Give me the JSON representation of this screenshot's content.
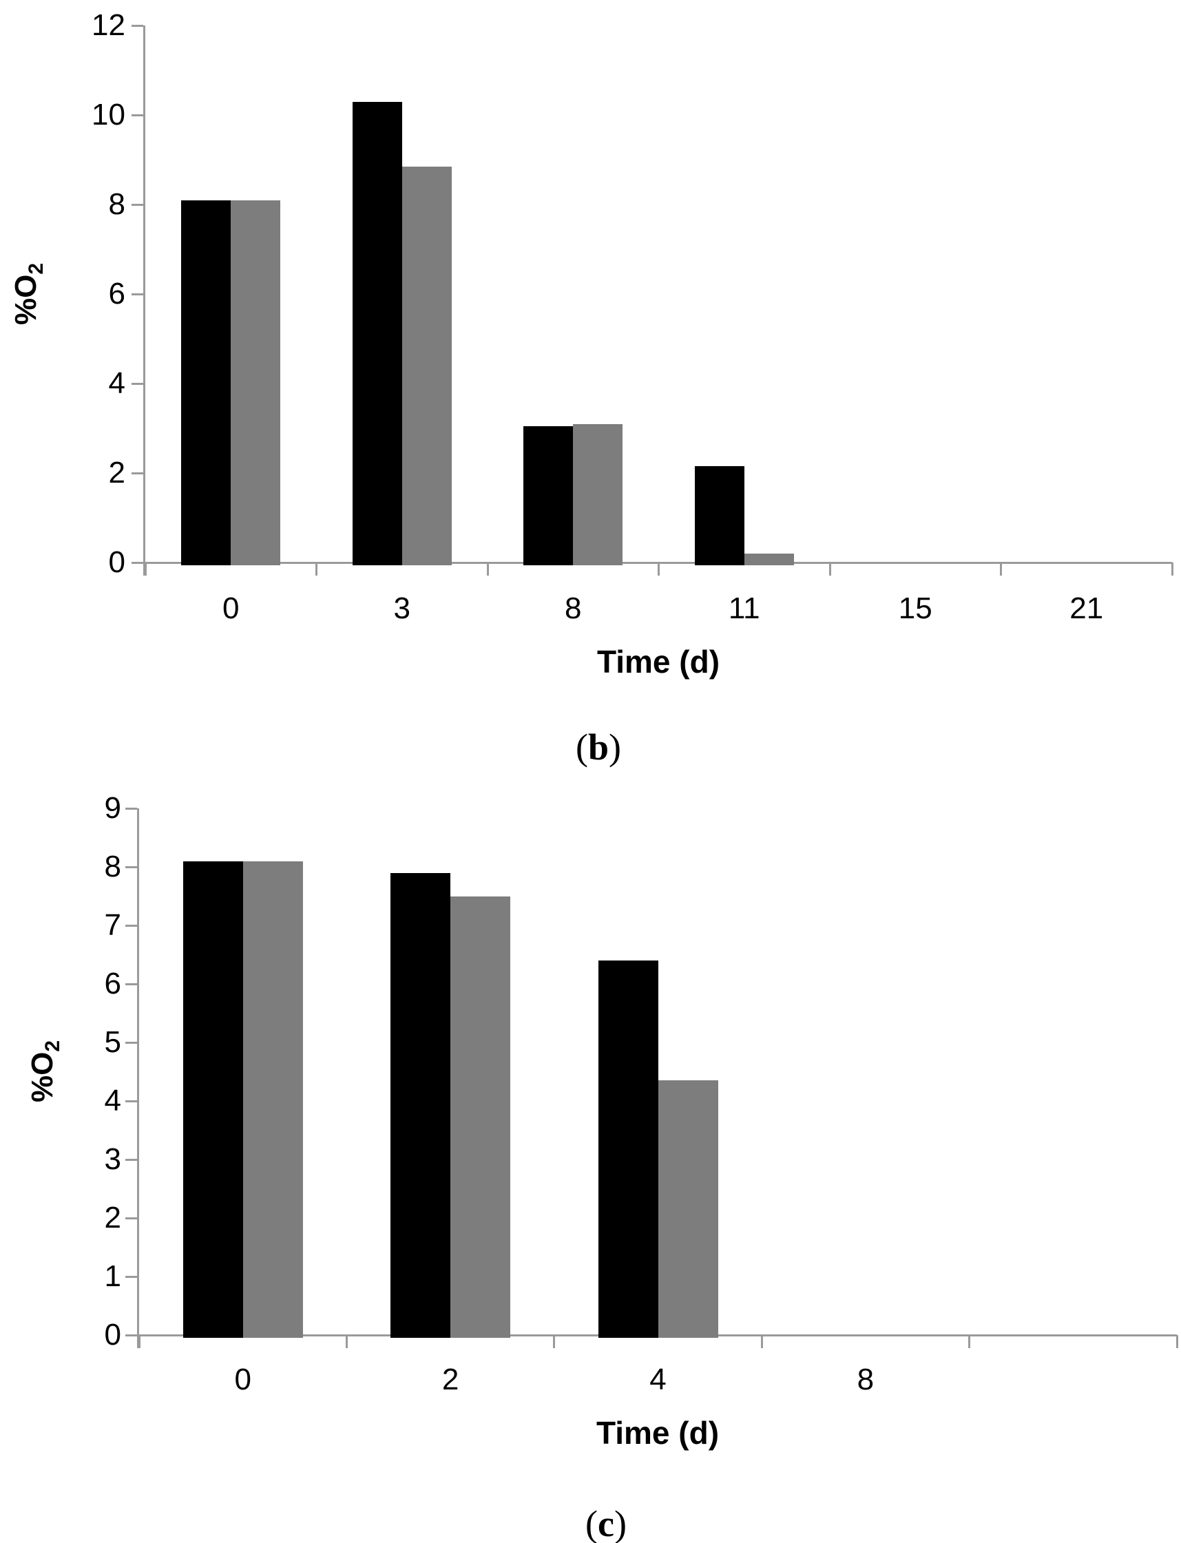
{
  "figure": {
    "background": "#ffffff"
  },
  "colors": {
    "bar_black": "#000000",
    "bar_gray": "#7d7d7d",
    "axis": "#9a9a9a",
    "text": "#000000"
  },
  "chart_data": [
    {
      "type": "bar",
      "title": "",
      "caption": "(b)",
      "caption_parts": {
        "open": "(",
        "letter": "b",
        "close": ")"
      },
      "categories": [
        "0",
        "3",
        "8",
        "11",
        "15",
        "21"
      ],
      "series": [
        {
          "name": "black-series",
          "color": "#000000",
          "values": [
            8.1,
            10.3,
            3.05,
            2.15,
            0,
            0
          ]
        },
        {
          "name": "gray-series",
          "color": "#7d7d7d",
          "values": [
            8.1,
            8.85,
            3.1,
            0.2,
            0,
            0
          ]
        }
      ],
      "xlabel": "Time (d)",
      "ylabel": "%O2",
      "ylabel_parts": {
        "text": "%O",
        "sub": "2"
      },
      "ylim": [
        0,
        12
      ],
      "yticks": [
        12,
        10,
        8,
        6,
        4,
        2,
        0
      ],
      "grid": false,
      "legend_position": "none"
    },
    {
      "type": "bar",
      "title": "",
      "caption": "(c)",
      "caption_parts": {
        "open": "(",
        "letter": "c",
        "close": ")"
      },
      "categories": [
        "0",
        "2",
        "4",
        "8",
        ""
      ],
      "series": [
        {
          "name": "black-series",
          "color": "#000000",
          "values": [
            8.1,
            7.9,
            6.4,
            0,
            0
          ]
        },
        {
          "name": "gray-series",
          "color": "#7d7d7d",
          "values": [
            8.1,
            7.5,
            4.35,
            0,
            0
          ]
        }
      ],
      "xlabel": "Time (d)",
      "ylabel": "%O2",
      "ylabel_parts": {
        "text": "%O",
        "sub": "2"
      },
      "ylim": [
        0,
        9
      ],
      "yticks": [
        9,
        8,
        7,
        6,
        5,
        4,
        3,
        2,
        1,
        0
      ],
      "grid": false,
      "legend_position": "none"
    }
  ]
}
